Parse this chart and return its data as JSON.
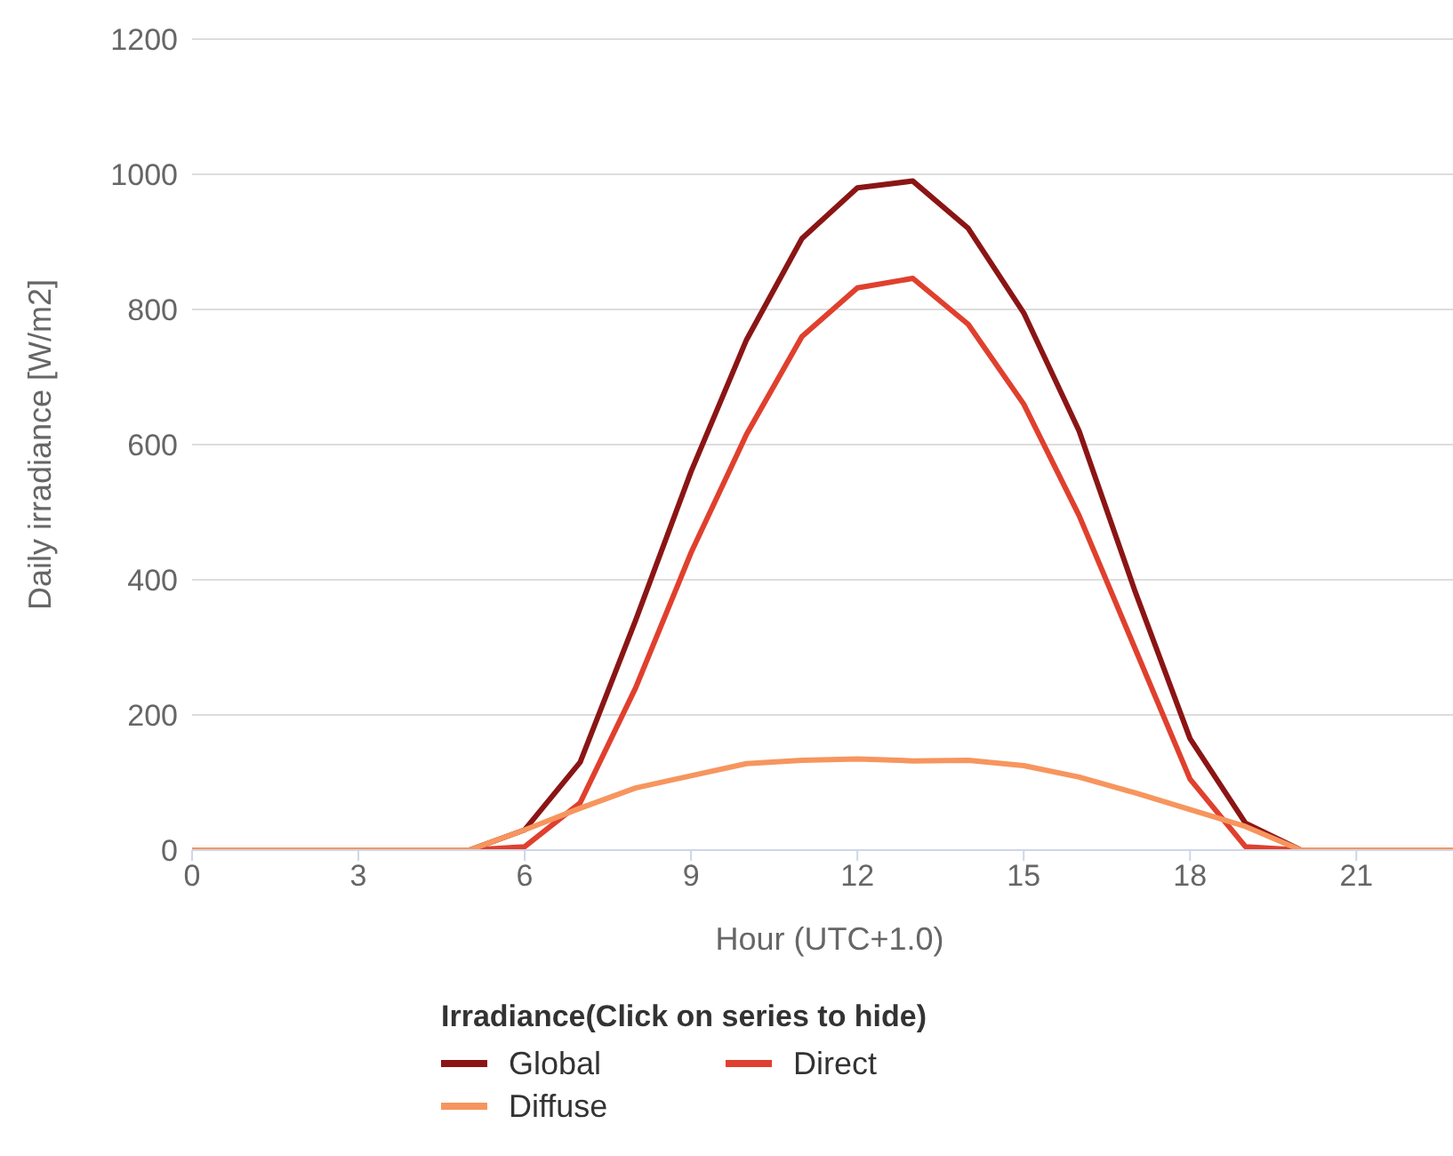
{
  "chart_data": {
    "type": "line",
    "xlabel": "Hour (UTC+1.0)",
    "ylabel": "Daily irradiance [W/m2]",
    "legend_title": "Irradiance(Click on series to hide)",
    "x": [
      0,
      1,
      2,
      3,
      4,
      5,
      6,
      7,
      8,
      9,
      10,
      11,
      12,
      13,
      14,
      15,
      16,
      17,
      18,
      19,
      20,
      21,
      22,
      23
    ],
    "series": [
      {
        "name": "Global",
        "color": "#8b1515",
        "values": [
          null,
          null,
          null,
          null,
          null,
          0,
          30,
          130,
          340,
          560,
          755,
          905,
          980,
          990,
          920,
          795,
          620,
          385,
          165,
          40,
          0,
          null,
          null,
          null
        ]
      },
      {
        "name": "Direct",
        "color": "#e0402e",
        "values": [
          null,
          null,
          null,
          null,
          null,
          0,
          5,
          70,
          240,
          440,
          615,
          760,
          832,
          846,
          778,
          660,
          495,
          300,
          105,
          5,
          0,
          null,
          null,
          null
        ]
      },
      {
        "name": "Diffuse",
        "color": "#f7955e",
        "values": [
          0,
          0,
          0,
          0,
          0,
          0,
          30,
          62,
          92,
          110,
          128,
          133,
          135,
          132,
          133,
          125,
          108,
          85,
          60,
          35,
          0,
          0,
          0,
          0
        ]
      }
    ],
    "xlim": [
      0,
      23
    ],
    "xticks": [
      0,
      3,
      6,
      9,
      12,
      15,
      18,
      21
    ],
    "ylim": [
      0,
      1200
    ],
    "yticks": [
      0,
      200,
      400,
      600,
      800,
      1000,
      1200
    ],
    "grid": "y",
    "legend": "bottom",
    "marker": "none",
    "line_style": "solid"
  }
}
